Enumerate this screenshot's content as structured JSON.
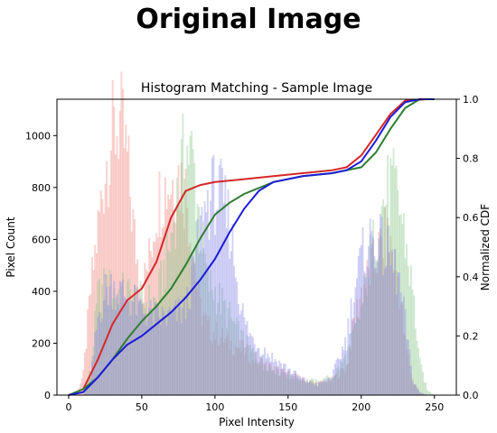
{
  "header": {
    "title": "Original Image"
  },
  "chart_data": {
    "type": "histogram+line",
    "title": "Histogram Matching - Sample Image",
    "xlabel": "Pixel Intensity",
    "ylabel": "Pixel Count",
    "y2label": "Normalized CDF",
    "xlim": [
      -8,
      265
    ],
    "ylim": [
      0,
      1140
    ],
    "y2lim": [
      0,
      1.0
    ],
    "xticks": [
      0,
      50,
      100,
      150,
      200,
      250
    ],
    "yticks": [
      0,
      200,
      400,
      600,
      800,
      1000
    ],
    "y2ticks": [
      0.0,
      0.2,
      0.4,
      0.6,
      0.8,
      1.0
    ],
    "histograms": [
      {
        "channel": "red",
        "color": "#f08a80",
        "opacity": 0.38,
        "points": [
          [
            5,
            0
          ],
          [
            10,
            80
          ],
          [
            15,
            400
          ],
          [
            20,
            640
          ],
          [
            25,
            880
          ],
          [
            30,
            1000
          ],
          [
            35,
            1060
          ],
          [
            40,
            900
          ],
          [
            45,
            600
          ],
          [
            50,
            400
          ],
          [
            55,
            520
          ],
          [
            60,
            730
          ],
          [
            65,
            800
          ],
          [
            70,
            820
          ],
          [
            75,
            850
          ],
          [
            80,
            790
          ],
          [
            85,
            560
          ],
          [
            90,
            330
          ],
          [
            95,
            260
          ],
          [
            100,
            240
          ],
          [
            110,
            200
          ],
          [
            120,
            170
          ],
          [
            130,
            130
          ],
          [
            140,
            100
          ],
          [
            150,
            80
          ],
          [
            160,
            60
          ],
          [
            170,
            45
          ],
          [
            180,
            60
          ],
          [
            190,
            110
          ],
          [
            195,
            280
          ],
          [
            200,
            400
          ],
          [
            205,
            460
          ],
          [
            210,
            520
          ],
          [
            215,
            600
          ],
          [
            220,
            580
          ],
          [
            225,
            460
          ],
          [
            230,
            200
          ],
          [
            235,
            60
          ],
          [
            240,
            10
          ],
          [
            245,
            0
          ]
        ]
      },
      {
        "channel": "green",
        "color": "#8cc88c",
        "opacity": 0.38,
        "points": [
          [
            10,
            0
          ],
          [
            15,
            100
          ],
          [
            20,
            380
          ],
          [
            25,
            420
          ],
          [
            30,
            400
          ],
          [
            40,
            390
          ],
          [
            50,
            360
          ],
          [
            60,
            360
          ],
          [
            70,
            600
          ],
          [
            75,
            800
          ],
          [
            80,
            960
          ],
          [
            85,
            900
          ],
          [
            90,
            650
          ],
          [
            95,
            430
          ],
          [
            100,
            400
          ],
          [
            110,
            300
          ],
          [
            120,
            200
          ],
          [
            130,
            140
          ],
          [
            140,
            100
          ],
          [
            150,
            80
          ],
          [
            160,
            60
          ],
          [
            170,
            50
          ],
          [
            180,
            70
          ],
          [
            190,
            150
          ],
          [
            200,
            320
          ],
          [
            205,
            500
          ],
          [
            210,
            620
          ],
          [
            215,
            740
          ],
          [
            220,
            800
          ],
          [
            225,
            760
          ],
          [
            230,
            600
          ],
          [
            235,
            400
          ],
          [
            240,
            120
          ],
          [
            245,
            20
          ],
          [
            250,
            0
          ]
        ]
      },
      {
        "channel": "blue",
        "color": "#8a8ae8",
        "opacity": 0.38,
        "points": [
          [
            10,
            0
          ],
          [
            15,
            60
          ],
          [
            20,
            300
          ],
          [
            25,
            400
          ],
          [
            30,
            420
          ],
          [
            40,
            380
          ],
          [
            50,
            330
          ],
          [
            60,
            300
          ],
          [
            70,
            300
          ],
          [
            80,
            330
          ],
          [
            90,
            620
          ],
          [
            95,
            750
          ],
          [
            100,
            780
          ],
          [
            105,
            740
          ],
          [
            110,
            660
          ],
          [
            115,
            450
          ],
          [
            120,
            280
          ],
          [
            125,
            220
          ],
          [
            130,
            190
          ],
          [
            140,
            140
          ],
          [
            150,
            100
          ],
          [
            160,
            60
          ],
          [
            170,
            40
          ],
          [
            180,
            70
          ],
          [
            190,
            220
          ],
          [
            195,
            400
          ],
          [
            200,
            520
          ],
          [
            205,
            590
          ],
          [
            210,
            600
          ],
          [
            215,
            560
          ],
          [
            220,
            520
          ],
          [
            225,
            460
          ],
          [
            230,
            280
          ],
          [
            235,
            60
          ],
          [
            240,
            10
          ],
          [
            245,
            0
          ]
        ]
      }
    ],
    "series": [
      {
        "channel": "red",
        "color": "#d62728",
        "points": [
          [
            0,
            0
          ],
          [
            10,
            0.02
          ],
          [
            20,
            0.12
          ],
          [
            30,
            0.24
          ],
          [
            40,
            0.32
          ],
          [
            50,
            0.36
          ],
          [
            60,
            0.45
          ],
          [
            70,
            0.6
          ],
          [
            80,
            0.69
          ],
          [
            90,
            0.71
          ],
          [
            100,
            0.72
          ],
          [
            120,
            0.73
          ],
          [
            140,
            0.74
          ],
          [
            160,
            0.75
          ],
          [
            180,
            0.76
          ],
          [
            190,
            0.77
          ],
          [
            200,
            0.81
          ],
          [
            210,
            0.88
          ],
          [
            220,
            0.95
          ],
          [
            230,
            0.995
          ],
          [
            245,
            1.0
          ]
        ]
      },
      {
        "channel": "green",
        "color": "#2e7d32",
        "points": [
          [
            0,
            0
          ],
          [
            10,
            0.02
          ],
          [
            20,
            0.06
          ],
          [
            30,
            0.12
          ],
          [
            40,
            0.19
          ],
          [
            50,
            0.25
          ],
          [
            60,
            0.3
          ],
          [
            70,
            0.36
          ],
          [
            80,
            0.44
          ],
          [
            90,
            0.53
          ],
          [
            100,
            0.61
          ],
          [
            110,
            0.65
          ],
          [
            120,
            0.68
          ],
          [
            140,
            0.72
          ],
          [
            160,
            0.74
          ],
          [
            180,
            0.75
          ],
          [
            200,
            0.77
          ],
          [
            210,
            0.82
          ],
          [
            220,
            0.9
          ],
          [
            230,
            0.97
          ],
          [
            240,
            1.0
          ],
          [
            250,
            1.0
          ]
        ]
      },
      {
        "channel": "blue",
        "color": "#1c1cd8",
        "points": [
          [
            0,
            0
          ],
          [
            10,
            0.01
          ],
          [
            20,
            0.06
          ],
          [
            30,
            0.12
          ],
          [
            40,
            0.17
          ],
          [
            50,
            0.2
          ],
          [
            60,
            0.24
          ],
          [
            70,
            0.28
          ],
          [
            80,
            0.33
          ],
          [
            90,
            0.39
          ],
          [
            100,
            0.46
          ],
          [
            110,
            0.55
          ],
          [
            120,
            0.63
          ],
          [
            130,
            0.69
          ],
          [
            140,
            0.72
          ],
          [
            160,
            0.74
          ],
          [
            180,
            0.75
          ],
          [
            190,
            0.76
          ],
          [
            200,
            0.79
          ],
          [
            210,
            0.86
          ],
          [
            220,
            0.94
          ],
          [
            230,
            0.99
          ],
          [
            240,
            1.0
          ],
          [
            250,
            1.0
          ]
        ]
      }
    ],
    "grid": false,
    "legend": "none"
  }
}
